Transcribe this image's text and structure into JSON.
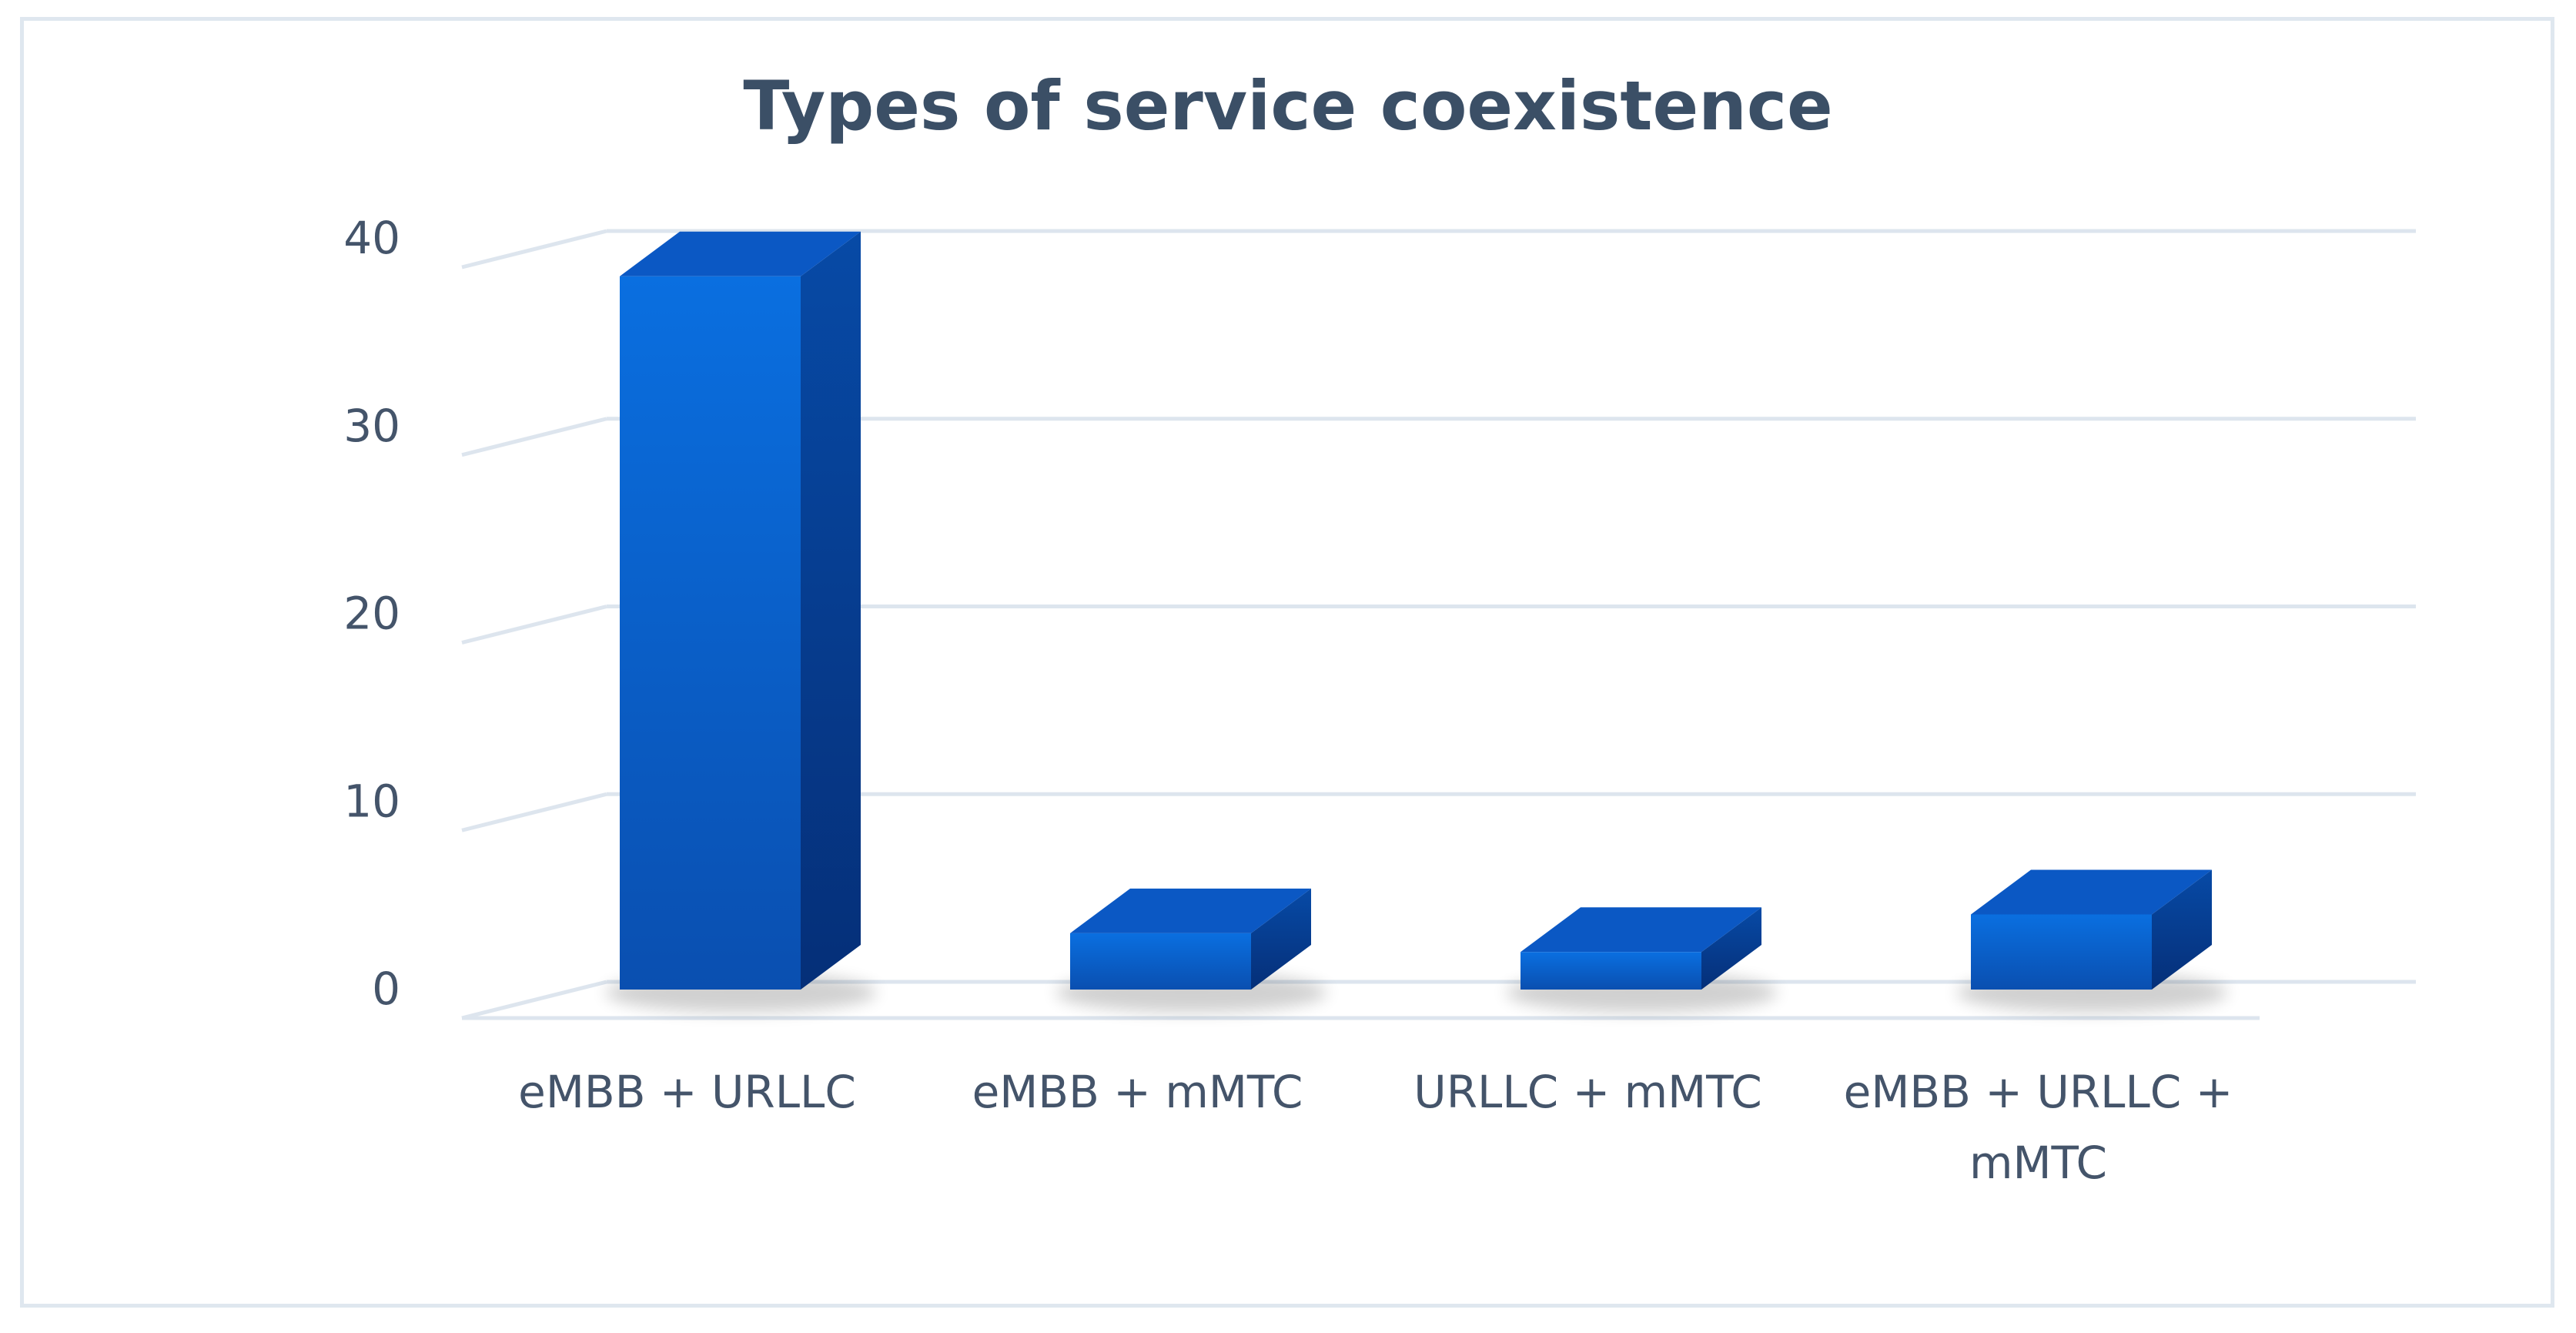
{
  "chart_data": {
    "type": "bar",
    "title": "Types of service coexistence",
    "xlabel": "",
    "ylabel": "",
    "categories": [
      [
        "eMBB + URLLC"
      ],
      [
        "eMBB + mMTC"
      ],
      [
        "URLLC + mMTC"
      ],
      [
        "eMBB + URLLC +",
        "mMTC"
      ]
    ],
    "values": [
      38,
      3,
      2,
      4
    ],
    "ylim": [
      0,
      40
    ],
    "yticks": [
      0,
      10,
      20,
      30,
      40
    ],
    "grid": true,
    "legend": "none",
    "style": "3d-column"
  },
  "colors": {
    "bar_front_top": "#0a6fe0",
    "bar_front_bottom": "#0a4fb0",
    "bar_side": "#06388a",
    "bar_top": "#0b58c4",
    "grid": "#dde5ee",
    "axis_text": "#44546a",
    "title": "#3b4f66",
    "border": "#dfe7ef"
  }
}
